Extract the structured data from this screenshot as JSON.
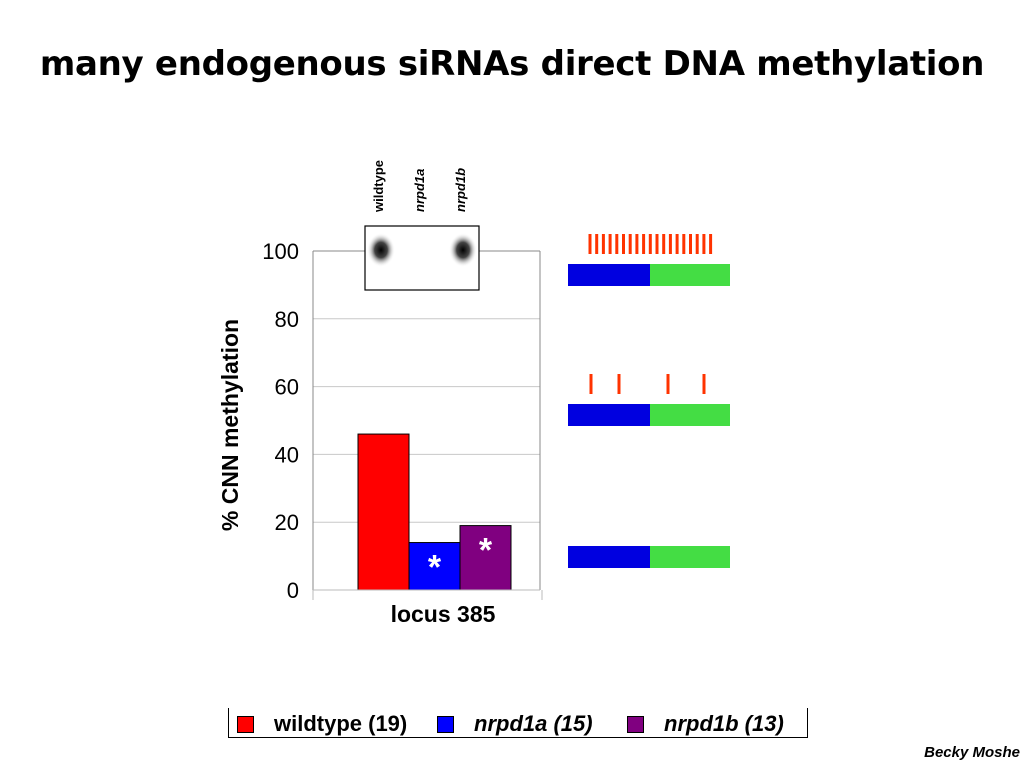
{
  "title": "many endogenous siRNAs direct DNA methylation",
  "credit": "Becky Moshe",
  "chart_data": {
    "type": "bar",
    "categories": [
      "locus 385"
    ],
    "xlabel": "locus 385",
    "ylabel": "% CNN methylation",
    "ylim": [
      0,
      100
    ],
    "yticks": [
      0,
      20,
      40,
      60,
      80,
      100
    ],
    "grid": true,
    "legend_position": "bottom",
    "series": [
      {
        "name": "wildtype (19)",
        "values": [
          46
        ],
        "color": "#ff0000",
        "marker": ""
      },
      {
        "name": "nrpd1a (15)",
        "values": [
          14
        ],
        "color": "#0000ff",
        "marker": "*"
      },
      {
        "name": "nrpd1b (13)",
        "values": [
          19
        ],
        "color": "#800080",
        "marker": "*"
      }
    ]
  },
  "legend": [
    {
      "name_plain": "wildtype",
      "name_italic": "",
      "count": "(19)",
      "color": "#ff0000"
    },
    {
      "name_plain": "",
      "name_italic": "nrpd1a",
      "count": "(15)",
      "color": "#0000ff"
    },
    {
      "name_plain": "",
      "name_italic": "nrpd1b",
      "count": "(13)",
      "color": "#800080"
    }
  ],
  "blot": {
    "lane_labels": [
      "wildtype",
      "nrpd1a",
      "nrpd1b"
    ],
    "lane_italic": [
      false,
      true,
      true
    ],
    "spots": [
      true,
      false,
      true
    ]
  },
  "methylation_diagrams": [
    {
      "ticks": 19,
      "segment_colors": [
        "#0000e0",
        "#44dd44"
      ]
    },
    {
      "ticks": 4,
      "segment_colors": [
        "#0000e0",
        "#44dd44"
      ]
    },
    {
      "ticks": 0,
      "segment_colors": [
        "#0000e0",
        "#44dd44"
      ]
    }
  ],
  "colors": {
    "tick": "#ff3300",
    "grid": "#c8c8c8"
  }
}
